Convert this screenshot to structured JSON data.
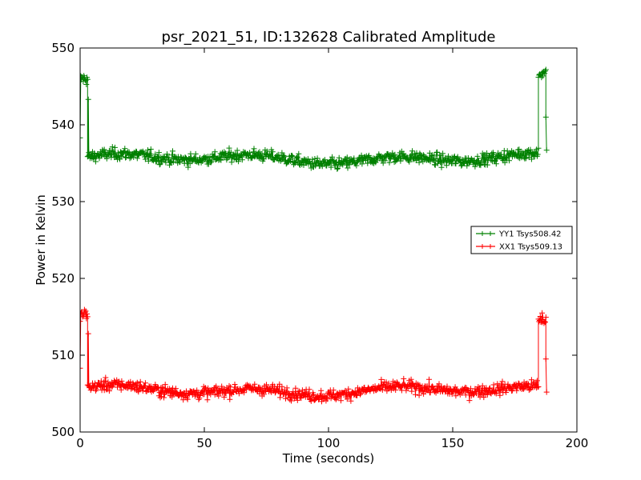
{
  "chart_data": {
    "type": "line",
    "title": "psr_2021_51, ID:132628 Calibrated Amplitude",
    "xlabel": "Time (seconds)",
    "ylabel": "Power in Kelvin",
    "xlim": [
      0,
      200
    ],
    "ylim": [
      500,
      550
    ],
    "xticks": [
      0,
      50,
      100,
      150,
      200
    ],
    "yticks": [
      500,
      510,
      520,
      530,
      540,
      550
    ],
    "xtick_labels": [
      "0",
      "50",
      "100",
      "150",
      "200"
    ],
    "ytick_labels": [
      "500",
      "510",
      "520",
      "530",
      "540",
      "550"
    ],
    "grid": false,
    "legend_position": "right",
    "marker": "+",
    "sample_interval": 0.25,
    "series": [
      {
        "name": "YY1 Tsys508.42",
        "color": "#008000",
        "high_level": 546.0,
        "baseline": 535.6,
        "noise": 0.75,
        "segments": [
          {
            "t0": 0.0,
            "t1": 3.0,
            "level": 546.0
          },
          {
            "t0": 3.0,
            "t1": 184.5,
            "level": 535.6
          },
          {
            "t0": 184.5,
            "t1": 187.5,
            "level": 546.6
          }
        ],
        "transition_points": [
          [
            0.0,
            538.3
          ],
          [
            3.3,
            543.3
          ],
          [
            3.6,
            536.0
          ],
          [
            186.0,
            546.8
          ],
          [
            187.5,
            541.0
          ],
          [
            187.8,
            536.7
          ]
        ]
      },
      {
        "name": "XX1 Tsys509.13",
        "color": "#ff0000",
        "high_level": 515.3,
        "baseline": 505.4,
        "noise": 0.75,
        "segments": [
          {
            "t0": 0.0,
            "t1": 3.0,
            "level": 515.3
          },
          {
            "t0": 3.0,
            "t1": 184.5,
            "level": 505.4
          },
          {
            "t0": 184.5,
            "t1": 187.5,
            "level": 514.6
          }
        ],
        "transition_points": [
          [
            0.0,
            508.3
          ],
          [
            3.3,
            512.8
          ],
          [
            3.6,
            506.0
          ],
          [
            186.0,
            515.5
          ],
          [
            187.5,
            509.5
          ],
          [
            187.8,
            505.2
          ]
        ]
      }
    ]
  }
}
